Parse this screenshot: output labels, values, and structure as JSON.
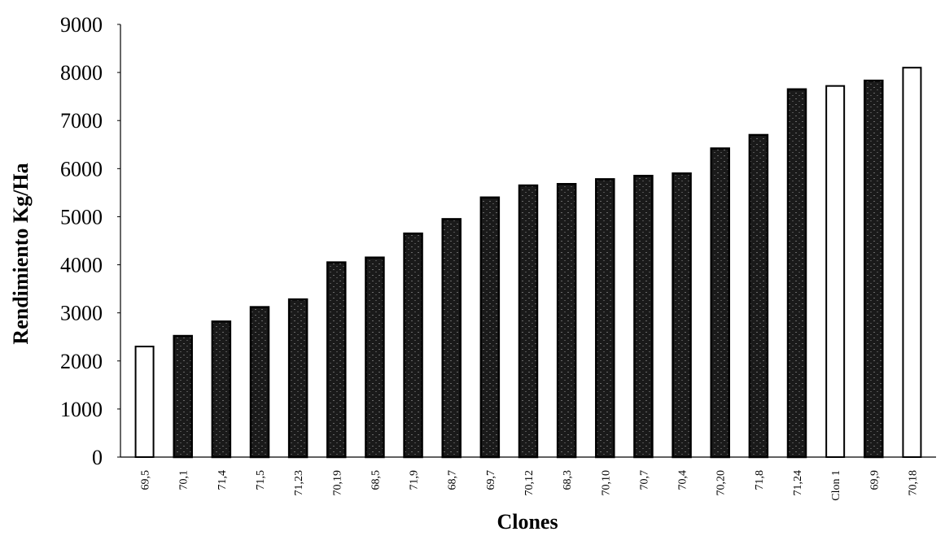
{
  "chart_data": {
    "type": "bar",
    "title": "",
    "xlabel": "Clones",
    "ylabel": "Rendimiento Kg/Ha",
    "ylim": [
      0,
      9000
    ],
    "yticks": [
      0,
      1000,
      2000,
      3000,
      4000,
      5000,
      6000,
      7000,
      8000,
      9000
    ],
    "grid": false,
    "legend": "none",
    "categories": [
      "69,5",
      "70,1",
      "71,4",
      "71,5",
      "71,23",
      "70,19",
      "68,5",
      "71,9",
      "68,7",
      "69,7",
      "70,12",
      "68,3",
      "70,10",
      "70,7",
      "70,4",
      "70,20",
      "71,8",
      "71,24",
      "Clon 1",
      "69,9",
      "70,18"
    ],
    "values": [
      2300,
      2520,
      2820,
      3120,
      3280,
      4050,
      4150,
      4650,
      4950,
      5400,
      5650,
      5680,
      5780,
      5850,
      5900,
      6420,
      6700,
      7650,
      7720,
      7830,
      8100
    ],
    "bar_fill": [
      "white",
      "dark",
      "dark",
      "dark",
      "dark",
      "dark",
      "dark",
      "dark",
      "dark",
      "dark",
      "dark",
      "dark",
      "dark",
      "dark",
      "dark",
      "dark",
      "dark",
      "dark",
      "white",
      "dark",
      "white"
    ],
    "colors": {
      "dark": "#1a1a1a",
      "white": "#ffffff",
      "stroke": "#000000"
    }
  }
}
